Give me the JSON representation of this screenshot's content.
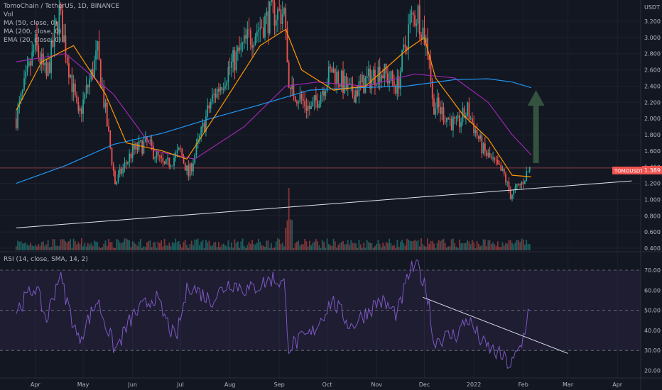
{
  "legend": {
    "symbol": "TomoChain / TetherUS, 1D, BINANCE",
    "vol": "Vol",
    "ma50": "MA (50, close, 0)",
    "ma200": "MA (200, close, 0)",
    "ema20": "EMA (20, close, 0)",
    "rsi": "RSI (14, close, SMA, 14, 2)"
  },
  "currency_label": "USDT",
  "price_tag": {
    "ticker": "TOMOUSDT",
    "value": "1.389"
  },
  "colors": {
    "background": "#131722",
    "up": "#26a69a",
    "down": "#ef5350",
    "ma50": "#9c27b0",
    "ma200": "#2196f3",
    "ema20": "#ff9800",
    "rsi": "#7e57c2",
    "trendline": "#e0e3eb",
    "arrow": "#33533e"
  },
  "chart_data": [
    {
      "type": "candlestick",
      "title": "TomoChain / TetherUS, 1D, BINANCE",
      "ylabel": "USDT",
      "y_ticks": [
        "3.200",
        "3.000",
        "2.800",
        "2.600",
        "2.400",
        "2.200",
        "2.000",
        "1.800",
        "1.600",
        "1.400",
        "1.200",
        "1.000",
        "0.800",
        "0.600",
        "0.400"
      ],
      "ylim": [
        0.4,
        3.4
      ],
      "x_ticks": [
        "Apr",
        "May",
        "Jun",
        "Jul",
        "Aug",
        "Sep",
        "Oct",
        "Nov",
        "Dec",
        "2022",
        "Feb",
        "Mar",
        "Apr"
      ],
      "price_path": [
        [
          "2021-03-20",
          2.0
        ],
        [
          "2021-04-01",
          2.9
        ],
        [
          "2021-04-08",
          2.5
        ],
        [
          "2021-04-16",
          3.3
        ],
        [
          "2021-04-28",
          2.0
        ],
        [
          "2021-05-10",
          2.8
        ],
        [
          "2021-05-21",
          1.2
        ],
        [
          "2021-06-01",
          1.6
        ],
        [
          "2021-06-10",
          1.7
        ],
        [
          "2021-06-21",
          1.4
        ],
        [
          "2021-07-01",
          1.6
        ],
        [
          "2021-07-06",
          1.3
        ],
        [
          "2021-07-20",
          2.2
        ],
        [
          "2021-07-31",
          2.6
        ],
        [
          "2021-08-13",
          3.0
        ],
        [
          "2021-08-28",
          3.3
        ],
        [
          "2021-09-04",
          3.3
        ],
        [
          "2021-09-07",
          2.4
        ],
        [
          "2021-09-21",
          2.1
        ],
        [
          "2021-10-04",
          2.6
        ],
        [
          "2021-10-16",
          2.3
        ],
        [
          "2021-11-03",
          2.6
        ],
        [
          "2021-11-14",
          2.4
        ],
        [
          "2021-11-22",
          3.2
        ],
        [
          "2021-11-27",
          3.3
        ],
        [
          "2021-12-04",
          2.8
        ],
        [
          "2021-12-06",
          2.2
        ],
        [
          "2021-12-21",
          1.9
        ],
        [
          "2021-12-28",
          2.1
        ],
        [
          "2022-01-07",
          1.6
        ],
        [
          "2022-01-20",
          1.3
        ],
        [
          "2022-01-24",
          1.05
        ],
        [
          "2022-01-31",
          1.2
        ],
        [
          "2022-02-05",
          1.39
        ]
      ],
      "series": [
        {
          "name": "MA (50, close, 0)",
          "values": [
            [
              "2021-03-20",
              2.7
            ],
            [
              "2021-04-20",
              2.8
            ],
            [
              "2021-05-20",
              2.3
            ],
            [
              "2021-06-15",
              1.6
            ],
            [
              "2021-07-10",
              1.5
            ],
            [
              "2021-08-10",
              1.9
            ],
            [
              "2021-09-05",
              2.4
            ],
            [
              "2021-09-25",
              2.45
            ],
            [
              "2021-10-25",
              2.4
            ],
            [
              "2021-11-25",
              2.55
            ],
            [
              "2021-12-20",
              2.5
            ],
            [
              "2022-01-10",
              2.2
            ],
            [
              "2022-01-25",
              1.8
            ],
            [
              "2022-02-06",
              1.55
            ]
          ]
        },
        {
          "name": "MA (200, close, 0)",
          "values": [
            [
              "2021-03-20",
              1.2
            ],
            [
              "2021-04-20",
              1.42
            ],
            [
              "2021-05-20",
              1.68
            ],
            [
              "2021-06-20",
              1.82
            ],
            [
              "2021-07-20",
              2.0
            ],
            [
              "2021-08-20",
              2.17
            ],
            [
              "2021-09-20",
              2.35
            ],
            [
              "2021-10-20",
              2.38
            ],
            [
              "2021-11-20",
              2.4
            ],
            [
              "2021-12-20",
              2.48
            ],
            [
              "2022-01-10",
              2.49
            ],
            [
              "2022-01-25",
              2.45
            ],
            [
              "2022-02-06",
              2.38
            ]
          ]
        },
        {
          "name": "EMA (20, close, 0)",
          "values": [
            [
              "2021-03-20",
              2.1
            ],
            [
              "2021-04-05",
              2.7
            ],
            [
              "2021-04-25",
              2.9
            ],
            [
              "2021-05-15",
              2.3
            ],
            [
              "2021-05-28",
              1.7
            ],
            [
              "2021-06-20",
              1.6
            ],
            [
              "2021-07-05",
              1.5
            ],
            [
              "2021-07-25",
              2.1
            ],
            [
              "2021-08-20",
              2.9
            ],
            [
              "2021-09-05",
              3.1
            ],
            [
              "2021-09-15",
              2.6
            ],
            [
              "2021-10-05",
              2.35
            ],
            [
              "2021-10-25",
              2.4
            ],
            [
              "2021-11-20",
              2.85
            ],
            [
              "2021-12-01",
              3.0
            ],
            [
              "2021-12-08",
              2.5
            ],
            [
              "2021-12-25",
              2.05
            ],
            [
              "2022-01-10",
              1.75
            ],
            [
              "2022-01-25",
              1.3
            ],
            [
              "2022-02-06",
              1.28
            ]
          ]
        }
      ],
      "annotations": {
        "support_line": [
          [
            "2021-03-20",
            0.65
          ],
          [
            "2022-04-10",
            1.23
          ]
        ],
        "arrow": {
          "from": [
            "2022-02-09",
            1.45
          ],
          "to": [
            "2022-02-09",
            2.35
          ]
        },
        "last_price": 1.389
      }
    },
    {
      "type": "bar",
      "title": "Vol",
      "volume_spike": "2021-09-07"
    },
    {
      "type": "line",
      "title": "RSI (14, close, SMA, 14, 2)",
      "y_ticks": [
        "70.00",
        "60.00",
        "50.00",
        "40.00",
        "30.00",
        "20.00"
      ],
      "ylim": [
        17,
        76
      ],
      "levels": [
        70,
        50,
        30
      ],
      "rsi_path": [
        [
          "2021-03-20",
          50
        ],
        [
          "2021-04-01",
          62
        ],
        [
          "2021-04-08",
          45
        ],
        [
          "2021-04-16",
          68
        ],
        [
          "2021-04-28",
          35
        ],
        [
          "2021-05-10",
          55
        ],
        [
          "2021-05-21",
          30
        ],
        [
          "2021-06-01",
          47
        ],
        [
          "2021-06-15",
          57
        ],
        [
          "2021-06-28",
          35
        ],
        [
          "2021-07-06",
          63
        ],
        [
          "2021-07-20",
          55
        ],
        [
          "2021-08-01",
          64
        ],
        [
          "2021-08-13",
          60
        ],
        [
          "2021-08-28",
          66
        ],
        [
          "2021-09-04",
          63
        ],
        [
          "2021-09-07",
          32
        ],
        [
          "2021-09-21",
          38
        ],
        [
          "2021-10-04",
          55
        ],
        [
          "2021-10-16",
          42
        ],
        [
          "2021-11-03",
          55
        ],
        [
          "2021-11-14",
          48
        ],
        [
          "2021-11-22",
          70
        ],
        [
          "2021-11-27",
          72
        ],
        [
          "2021-12-04",
          55
        ],
        [
          "2021-12-06",
          35
        ],
        [
          "2021-12-21",
          38
        ],
        [
          "2021-12-28",
          46
        ],
        [
          "2022-01-07",
          33
        ],
        [
          "2022-01-20",
          26
        ],
        [
          "2022-01-24",
          22
        ],
        [
          "2022-01-31",
          33
        ],
        [
          "2022-02-05",
          53
        ]
      ],
      "trendline": [
        [
          "2021-11-30",
          56.5
        ],
        [
          "2022-03-01",
          28.5
        ]
      ]
    }
  ]
}
